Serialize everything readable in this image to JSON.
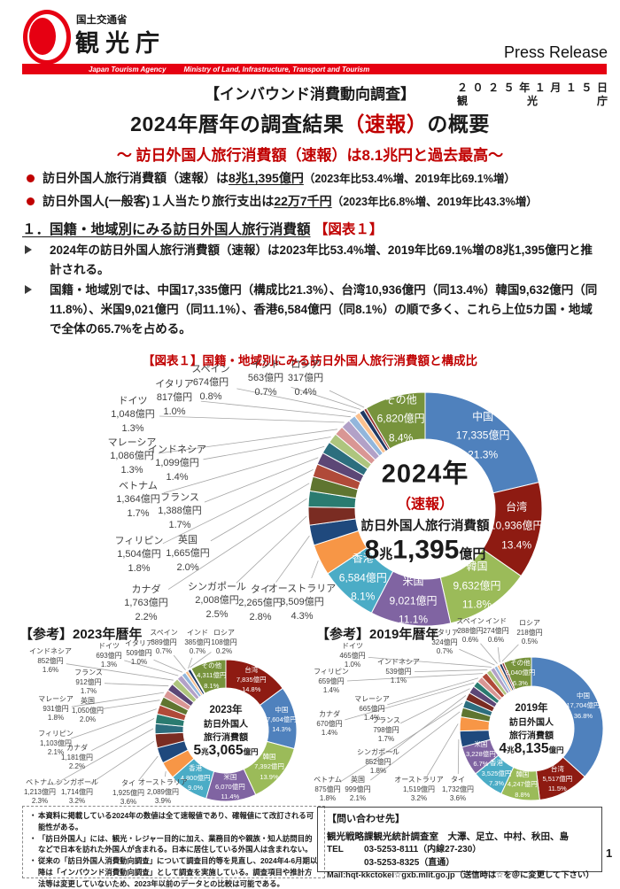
{
  "header": {
    "ministry_label": "国土交通省",
    "agency_label": "観光庁",
    "press_release": "Press Release",
    "bar_left": "Japan Tourism Agency",
    "bar_right": "Ministry of Land, Infrastructure, Transport and Tourism"
  },
  "masthead": {
    "survey_tag": "【インバウンド消費動向調査】",
    "date_line": "２０２５年１月１５日",
    "org_chars": [
      "観",
      "光",
      "庁"
    ],
    "title_pre": "2024年暦年の調査結果",
    "title_red": "（速報）",
    "title_post": "の概要",
    "subtitle": "～ 訪日外国人旅行消費額（速報）は8.1兆円と過去最高～",
    "bullet1": {
      "pre": "訪日外国人旅行消費額（速報）は",
      "strong": "8兆1,395億円",
      "post": "（2023年比53.4%増、2019年比69.1%増）"
    },
    "bullet2": {
      "pre": "訪日外国人(一般客)１人当たり旅行支出は",
      "strong": "22万7千円",
      "post": "（2023年比6.8%増、2019年比43.3%増）"
    }
  },
  "section1": {
    "heading": "１．国籍・地域別にみる訪日外国人旅行消費額",
    "heading_ref": "【図表１】",
    "para1": "2024年の訪日外国人旅行消費額（速報）は2023年比53.4%増、2019年比69.1%増の8兆1,395億円と推計される。",
    "para2_runs": [
      "国籍・地域別では、",
      "中国",
      "17,335億円（構成比21.3%）、",
      "台湾",
      "10,936億円（同13.4%）",
      "韓国",
      "9,632億円（同11.8%）、",
      "米国",
      "9,021億円（同11.1%）、",
      "香港",
      "6,584億円（同8.1%）の順で多く、これら上位5カ国・地域で全体の65.7%を占める。"
    ]
  },
  "colors": {
    "accent_red": "#C00000",
    "brand_red": "#E60012"
  },
  "country_colors": {
    "中国": "#4F81BD",
    "台湾": "#8E1B12",
    "韓国": "#9BBB59",
    "米国": "#8064A2",
    "香港": "#4BACC6",
    "オーストラリア": "#F79646",
    "タイ": "#1F497D",
    "シンガポール": "#7A2C22",
    "カナダ": "#2A7B70",
    "英国": "#5F7530",
    "フィリピン": "#B04A39",
    "フランス": "#5C4776",
    "ベトナム": "#2C6E7E",
    "インドネシア": "#AEC57E",
    "マレーシア": "#D99694",
    "ドイツ": "#B2A1C7",
    "イタリア": "#92B6DC",
    "スペイン": "#FAC08F",
    "インド": "#1F3864",
    "ロシア": "#943634",
    "その他": "#77933C"
  },
  "chart_data": [
    {
      "id": "chart-2024",
      "type": "pie",
      "variant": "donut",
      "title": "【図表１】国籍・地域別にみる訪日外国人旅行消費額と構成比",
      "center_lines": [
        "2024年",
        "（速報）",
        "訪日外国人旅行消費額"
      ],
      "total_parts": [
        "8",
        "兆",
        "1,395",
        "億円"
      ],
      "total": "8兆1,395億円",
      "segments": [
        {
          "name": "中国",
          "value": "17,335億円",
          "pct": 21.3
        },
        {
          "name": "台湾",
          "value": "10,936億円",
          "pct": 13.4
        },
        {
          "name": "韓国",
          "value": "9,632億円",
          "pct": 11.8
        },
        {
          "name": "米国",
          "value": "9,021億円",
          "pct": 11.1
        },
        {
          "name": "香港",
          "value": "6,584億円",
          "pct": 8.1
        },
        {
          "name": "オーストラリア",
          "value": "3,509億円",
          "pct": 4.3
        },
        {
          "name": "タイ",
          "value": "2,265億円",
          "pct": 2.8
        },
        {
          "name": "シンガポール",
          "value": "2,008億円",
          "pct": 2.5
        },
        {
          "name": "カナダ",
          "value": "1,763億円",
          "pct": 2.2
        },
        {
          "name": "英国",
          "value": "1,665億円",
          "pct": 2.0
        },
        {
          "name": "フィリピン",
          "value": "1,504億円",
          "pct": 1.8
        },
        {
          "name": "フランス",
          "value": "1,388億円",
          "pct": 1.7
        },
        {
          "name": "ベトナム",
          "value": "1,364億円",
          "pct": 1.7
        },
        {
          "name": "インドネシア",
          "value": "1,099億円",
          "pct": 1.4
        },
        {
          "name": "マレーシア",
          "value": "1,086億円",
          "pct": 1.3
        },
        {
          "name": "ドイツ",
          "value": "1,048億円",
          "pct": 1.3
        },
        {
          "name": "イタリア",
          "value": "817億円",
          "pct": 1.0
        },
        {
          "name": "スペイン",
          "value": "674億円",
          "pct": 0.8
        },
        {
          "name": "インド",
          "value": "563億円",
          "pct": 0.7
        },
        {
          "name": "ロシア",
          "value": "317億円",
          "pct": 0.4
        },
        {
          "name": "その他",
          "value": "6,820億円",
          "pct": 8.4
        }
      ]
    },
    {
      "id": "chart-2023",
      "type": "pie",
      "variant": "donut",
      "title": "【参考】2023年暦年",
      "center_lines": [
        "2023年",
        "訪日外国人",
        "旅行消費額"
      ],
      "total_parts": [
        "5",
        "兆",
        "3,065",
        "億円"
      ],
      "total": "5兆3,065億円",
      "segments": [
        {
          "name": "台湾",
          "value": "7,835億円",
          "pct": 14.8
        },
        {
          "name": "中国",
          "value": "7,604億円",
          "pct": 14.3
        },
        {
          "name": "韓国",
          "value": "7,392億円",
          "pct": 13.9
        },
        {
          "name": "米国",
          "value": "6,070億円",
          "pct": 11.4
        },
        {
          "name": "香港",
          "value": "4,800億円",
          "pct": 9.0
        },
        {
          "name": "オーストラリア",
          "value": "2,089億円",
          "pct": 3.9
        },
        {
          "name": "タイ",
          "value": "1,925億円",
          "pct": 3.6
        },
        {
          "name": "シンガポール",
          "value": "1,714億円",
          "pct": 3.2
        },
        {
          "name": "ベトナム",
          "value": "1,213億円",
          "pct": 2.3
        },
        {
          "name": "カナダ",
          "value": "1,181億円",
          "pct": 2.2
        },
        {
          "name": "フィリピン",
          "value": "1,103億円",
          "pct": 2.1
        },
        {
          "name": "英国",
          "value": "1,050億円",
          "pct": 2.0
        },
        {
          "name": "マレーシア",
          "value": "931億円",
          "pct": 1.8
        },
        {
          "name": "フランス",
          "value": "912億円",
          "pct": 1.7
        },
        {
          "name": "インドネシア",
          "value": "852億円",
          "pct": 1.6
        },
        {
          "name": "ドイツ",
          "value": "693億円",
          "pct": 1.3
        },
        {
          "name": "イタリア",
          "value": "509億円",
          "pct": 1.0
        },
        {
          "name": "スペイン",
          "value": "389億円",
          "pct": 0.7
        },
        {
          "name": "インド",
          "value": "385億円",
          "pct": 0.7
        },
        {
          "name": "ロシア",
          "value": "108億円",
          "pct": 0.2
        },
        {
          "name": "その他",
          "value": "4,311億円",
          "pct": 8.1
        }
      ]
    },
    {
      "id": "chart-2019",
      "type": "pie",
      "variant": "donut",
      "title": "【参考】2019年暦年",
      "center_lines": [
        "2019年",
        "訪日外国人",
        "旅行消費額"
      ],
      "total_parts": [
        "4",
        "兆",
        "8,135",
        "億円"
      ],
      "total": "4兆8,135億円",
      "segments": [
        {
          "name": "中国",
          "value": "17,704億円",
          "pct": 36.8
        },
        {
          "name": "台湾",
          "value": "5,517億円",
          "pct": 11.5
        },
        {
          "name": "韓国",
          "value": "4,247億円",
          "pct": 8.8
        },
        {
          "name": "香港",
          "value": "3,525億円",
          "pct": 7.3
        },
        {
          "name": "米国",
          "value": "3,228億円",
          "pct": 6.7
        },
        {
          "name": "タイ",
          "value": "1,732億円",
          "pct": 3.6
        },
        {
          "name": "オーストラリア",
          "value": "1,519億円",
          "pct": 3.2
        },
        {
          "name": "英国",
          "value": "999億円",
          "pct": 2.1
        },
        {
          "name": "ベトナム",
          "value": "875億円",
          "pct": 1.8
        },
        {
          "name": "シンガポール",
          "value": "852億円",
          "pct": 1.8
        },
        {
          "name": "フランス",
          "value": "798億円",
          "pct": 1.7
        },
        {
          "name": "カナダ",
          "value": "670億円",
          "pct": 1.4
        },
        {
          "name": "マレーシア",
          "value": "665億円",
          "pct": 1.4
        },
        {
          "name": "フィリピン",
          "value": "659億円",
          "pct": 1.4
        },
        {
          "name": "インドネシア",
          "value": "539億円",
          "pct": 1.1
        },
        {
          "name": "ドイツ",
          "value": "465億円",
          "pct": 1.0
        },
        {
          "name": "イタリア",
          "value": "324億円",
          "pct": 0.7
        },
        {
          "name": "スペイン",
          "value": "288億円",
          "pct": 0.6
        },
        {
          "name": "インド",
          "value": "274億円",
          "pct": 0.6
        },
        {
          "name": "ロシア",
          "value": "218億円",
          "pct": 0.5
        },
        {
          "name": "その他",
          "value": "3,040億円",
          "pct": 6.3
        }
      ]
    }
  ],
  "notes": [
    "本資料に掲載している2024年の数値は全て速報値であり、確報値にて改訂される可能性がある。",
    "「訪日外国人」には、観光・レジャー目的に加え、業務目的や親族・知人訪問目的などで日本を訪れた外国人が含まれる。日本に居住している外国人は含まれない。",
    "従来の「訪日外国人消費動向調査」について調査目的等を見直し、2024年4-6月期以降は「インバウンド消費動向調査」として調査を実施している。調査項目や推計方法等は変更していないため、2023年以前のデータとの比較は可能である。"
  ],
  "contact": {
    "heading": "【問い合わせ先】",
    "line1": "観光戦略課観光統計調査室　大澤、足立、中村、秋田、島",
    "tel_label": "TEL",
    "tel1": "03-5253-8111（内線27-230）",
    "tel2": "03-5253-8325（直通）",
    "mail": "Mail:hqt-kkctokei☆gxb.mlit.go.jp（送信時は☆を＠に変更して下さい）"
  },
  "page_number": "1"
}
